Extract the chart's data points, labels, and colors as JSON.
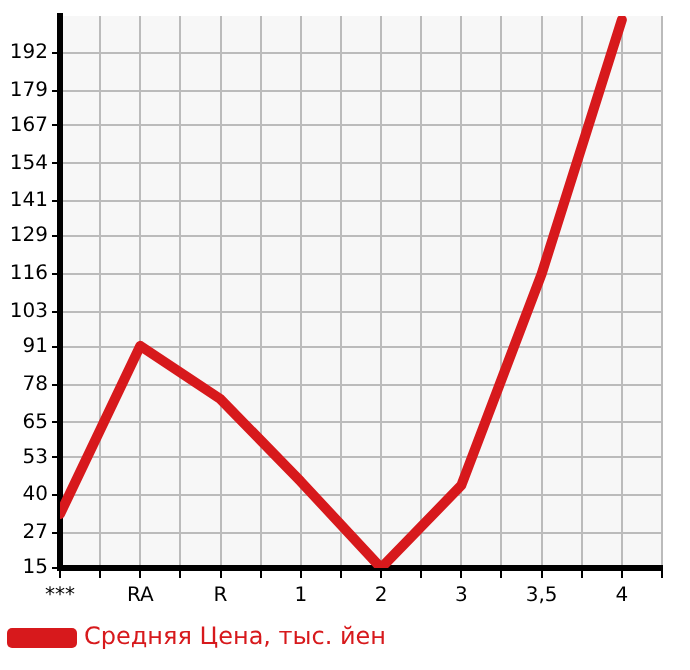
{
  "chart_data": {
    "type": "line",
    "categories": [
      "***",
      "RA",
      "R",
      "1",
      "2",
      "3",
      "3,5",
      "4"
    ],
    "series": [
      {
        "name": "Средняя Цена, тыс. йен",
        "color": "#d7191c",
        "values": [
          33.5,
          91.3,
          73,
          44.7,
          15,
          43.4,
          116,
          203.3
        ]
      }
    ],
    "ylim": [
      15,
      204.6
    ],
    "yticks": [
      15,
      27,
      40,
      53,
      65,
      78,
      91,
      103,
      116,
      129,
      141,
      154,
      167,
      179,
      192
    ],
    "grid": true,
    "legend": "bottom",
    "marker": "none",
    "line_style": "solid"
  }
}
